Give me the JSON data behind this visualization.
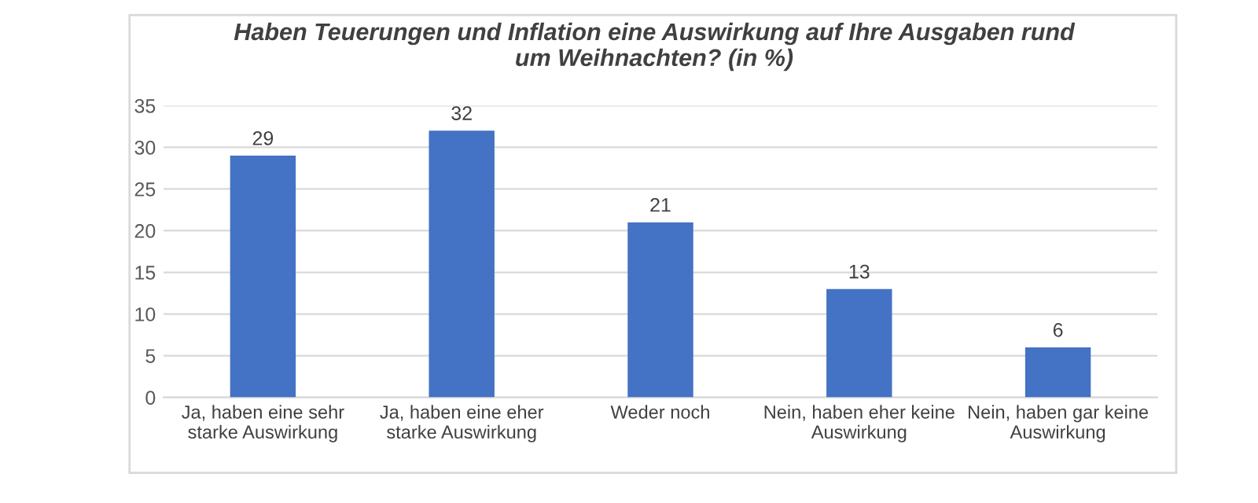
{
  "chart_data": {
    "type": "bar",
    "title": "Haben Teuerungen und Inflation eine Auswirkung auf Ihre Ausgaben rund\num Weihnachten? (in %)",
    "categories": [
      "Ja, haben eine sehr\nstarke Auswirkung",
      "Ja, haben eine eher\nstarke Auswirkung",
      "Weder noch",
      "Nein, haben eher keine\nAuswirkung",
      "Nein, haben gar keine\nAuswirkung"
    ],
    "values": [
      29,
      32,
      21,
      13,
      6
    ],
    "color": "#4472c4",
    "ylim": [
      0,
      35
    ],
    "yticks": [
      0,
      5,
      10,
      15,
      20,
      25,
      30,
      35
    ],
    "grid": "y",
    "data_labels": true,
    "legend": false
  }
}
